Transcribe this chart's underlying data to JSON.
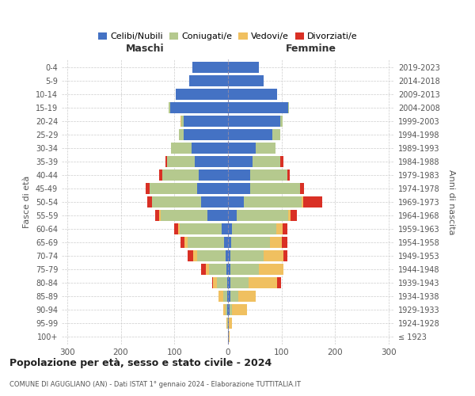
{
  "age_groups": [
    "100+",
    "95-99",
    "90-94",
    "85-89",
    "80-84",
    "75-79",
    "70-74",
    "65-69",
    "60-64",
    "55-59",
    "50-54",
    "45-49",
    "40-44",
    "35-39",
    "30-34",
    "25-29",
    "20-24",
    "15-19",
    "10-14",
    "5-9",
    "0-4"
  ],
  "birth_years": [
    "≤ 1923",
    "1924-1928",
    "1929-1933",
    "1934-1938",
    "1939-1943",
    "1944-1948",
    "1949-1953",
    "1954-1958",
    "1959-1963",
    "1964-1968",
    "1969-1973",
    "1974-1978",
    "1979-1983",
    "1984-1988",
    "1989-1993",
    "1994-1998",
    "1999-2003",
    "2004-2008",
    "2009-2013",
    "2014-2018",
    "2019-2023"
  ],
  "colors": {
    "celibi": "#4472c4",
    "coniugati": "#b5c98e",
    "vedovi": "#f0c060",
    "divorziati": "#d93025"
  },
  "maschi": {
    "celibi": [
      0,
      0,
      1,
      1,
      2,
      3,
      5,
      8,
      12,
      38,
      50,
      58,
      55,
      62,
      68,
      82,
      82,
      108,
      97,
      72,
      67
    ],
    "coniugati": [
      0,
      1,
      3,
      8,
      18,
      32,
      52,
      68,
      78,
      88,
      92,
      88,
      68,
      52,
      38,
      10,
      5,
      2,
      0,
      0,
      0
    ],
    "vedovi": [
      0,
      2,
      5,
      8,
      8,
      7,
      8,
      5,
      3,
      2,
      0,
      0,
      0,
      0,
      0,
      0,
      2,
      0,
      0,
      0,
      0
    ],
    "divorziati": [
      0,
      0,
      0,
      0,
      2,
      8,
      10,
      8,
      8,
      8,
      8,
      8,
      5,
      2,
      0,
      0,
      0,
      0,
      0,
      0,
      0
    ]
  },
  "femmine": {
    "celibi": [
      1,
      2,
      3,
      4,
      4,
      5,
      5,
      6,
      8,
      16,
      30,
      42,
      42,
      46,
      52,
      82,
      97,
      112,
      92,
      67,
      57
    ],
    "coniugati": [
      0,
      0,
      5,
      15,
      35,
      52,
      62,
      72,
      82,
      96,
      108,
      92,
      68,
      52,
      36,
      15,
      5,
      2,
      0,
      0,
      0
    ],
    "vedovi": [
      2,
      5,
      27,
      32,
      52,
      46,
      36,
      22,
      12,
      5,
      2,
      0,
      0,
      0,
      0,
      0,
      0,
      0,
      0,
      0,
      0
    ],
    "divorziati": [
      0,
      0,
      0,
      0,
      8,
      0,
      8,
      10,
      8,
      12,
      36,
      8,
      5,
      5,
      0,
      0,
      0,
      0,
      0,
      0,
      0
    ]
  },
  "title_main": "Popolazione per età, sesso e stato civile - 2024",
  "title_sub": "COMUNE DI AGUGLIANO (AN) - Dati ISTAT 1° gennaio 2024 - Elaborazione TUTTITALIA.IT",
  "xlabel_left": "Maschi",
  "xlabel_right": "Femmine",
  "ylabel_left": "Fasce di età",
  "ylabel_right": "Anni di nascita",
  "xlim": 310,
  "bg_color": "#ffffff",
  "grid_color": "#cccccc",
  "legend_labels": [
    "Celibi/Nubili",
    "Coniugati/e",
    "Vedovi/e",
    "Divorziati/e"
  ]
}
